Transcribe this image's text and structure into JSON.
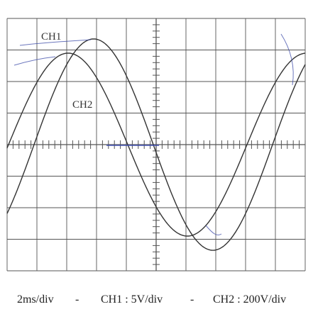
{
  "scope": {
    "grid": {
      "divisions_x": 10,
      "divisions_y": 8
    },
    "channels": [
      {
        "name": "CH1",
        "label": "CH1"
      },
      {
        "name": "CH2",
        "label": "CH2"
      }
    ]
  },
  "caption": {
    "timebase": "2ms/div",
    "sep1": "-",
    "ch1_setting": "CH1 : 5V/div",
    "sep2": "-",
    "ch2_setting": "CH2 : 200V/div"
  },
  "colors": {
    "trace": "#333333",
    "grid": "#555555",
    "ink": "#3b4aa8"
  }
}
